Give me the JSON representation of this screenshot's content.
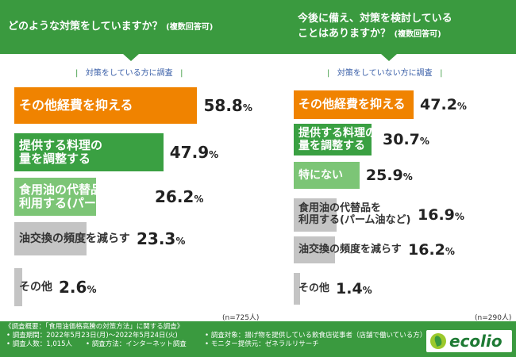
{
  "header": {
    "left_question": "どのような対策をしていますか？",
    "left_note": "(複数回答可)",
    "right_question_line1": "今後に備え、対策を検討している",
    "right_question_line2": "ことはありますか？",
    "right_note": "(複数回答可)"
  },
  "left_subtitle": "対策をしている方に調査",
  "right_subtitle": "対策をしていない方に調査",
  "left_n": "(n=725人)",
  "right_n": "(n=290人)",
  "colors": {
    "orange": "#f08300",
    "green": "#3aa042",
    "lightgreen": "#7cc576",
    "gray": "#c4c4c4",
    "header": "#3a9a3f"
  },
  "chart_data": [
    {
      "type": "bar",
      "orientation": "horizontal",
      "unit": "%",
      "categories": [
        "その他経費を抑える",
        "提供する料理の量を調整する",
        "食用油の代替品を利用する(パーム油など)",
        "油交換の頻度を減らす",
        "その他"
      ],
      "values": [
        58.8,
        47.9,
        26.2,
        23.3,
        2.6
      ],
      "category_lines": [
        [
          "その他経費を抑える"
        ],
        [
          "提供する料理の",
          "量を調整する"
        ],
        [
          "食用油の代替品を",
          "利用する(パーム油など)"
        ],
        [
          "油交換の頻度を減らす"
        ],
        [
          "その他"
        ]
      ],
      "value_labels": [
        {
          "int": "58.8",
          "pct": "%"
        },
        {
          "int": "47.9",
          "pct": "%"
        },
        {
          "int": "26.2",
          "pct": "%"
        },
        {
          "int": "23.3",
          "pct": "%"
        },
        {
          "int": "2.6",
          "pct": "%"
        }
      ],
      "bar_colors": [
        "orange",
        "green",
        "lightgreen",
        "gray",
        "gray"
      ],
      "title": "対策をしている方に調査"
    },
    {
      "type": "bar",
      "orientation": "horizontal",
      "unit": "%",
      "categories": [
        "その他経費を抑える",
        "提供する料理の量を調整する",
        "特にない",
        "食用油の代替品を利用する(パーム油など)",
        "油交換の頻度を減らす",
        "その他"
      ],
      "values": [
        47.2,
        30.7,
        25.9,
        16.9,
        16.2,
        1.4
      ],
      "category_lines": [
        [
          "その他経費を抑える"
        ],
        [
          "提供する料理の",
          "量を調整する"
        ],
        [
          "特にない"
        ],
        [
          "食用油の代替品を",
          "利用する(パーム油など)"
        ],
        [
          "油交換の頻度を減らす"
        ],
        [
          "その他"
        ]
      ],
      "value_labels": [
        {
          "int": "47.2",
          "pct": "%"
        },
        {
          "int": "30.7",
          "pct": "%"
        },
        {
          "int": "25.9",
          "pct": "%"
        },
        {
          "int": "16.9",
          "pct": "%"
        },
        {
          "int": "16.2",
          "pct": "%"
        },
        {
          "int": "1.4",
          "pct": "%"
        }
      ],
      "bar_colors": [
        "orange",
        "green",
        "lightgreen",
        "gray",
        "gray",
        "gray"
      ],
      "title": "対策をしていない方に調査"
    }
  ],
  "footer": {
    "line1": "《調査概要：「食用油価格高騰の対策方法」に関する調査》",
    "line2": "• 調査期間：2022年5月23日(月)～2022年5月24日(火)",
    "line3": "• 調査人数：1,015人　　• 調査方法：インターネット調査",
    "line4": "• 調査対象：揚げ物を提供している飲食店従事者（店舗で働いている方）",
    "line5": "• モニター提供元：ゼネラルリサーチ",
    "logo_text": "ecolio"
  }
}
